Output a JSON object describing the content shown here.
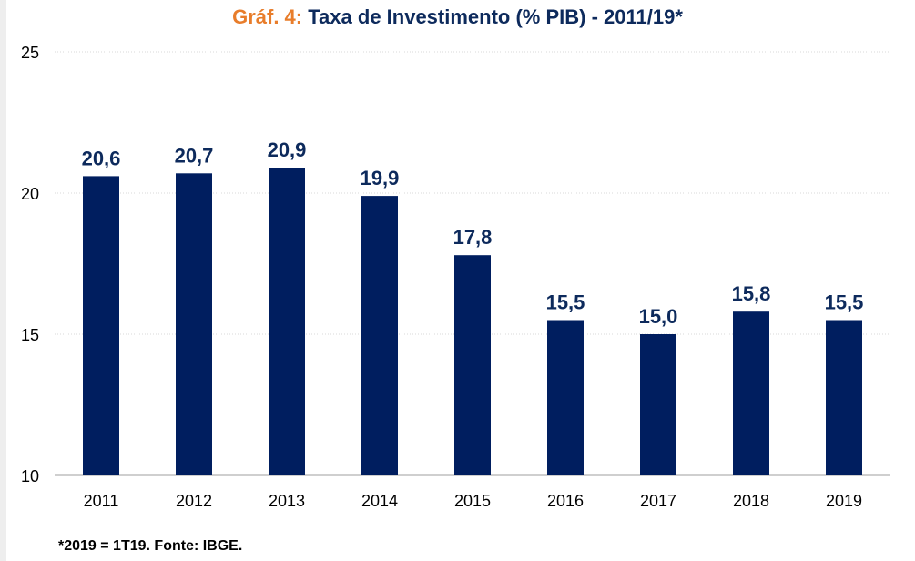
{
  "colors": {
    "title_prefix": "#e87d2b",
    "title_main": "#0d2a5c",
    "bar": "#001e5f",
    "label": "#0d2a5c"
  },
  "chart_data": {
    "type": "bar",
    "title_prefix": "Gráf. 4:",
    "title": "Taxa de Investimento (% PIB) - 2011/19*",
    "categories": [
      "2011",
      "2012",
      "2013",
      "2014",
      "2015",
      "2016",
      "2017",
      "2018",
      "2019"
    ],
    "values": [
      20.6,
      20.7,
      20.9,
      19.9,
      17.8,
      15.5,
      15.0,
      15.8,
      15.5
    ],
    "value_labels": [
      "20,6",
      "20,7",
      "20,9",
      "19,9",
      "17,8",
      "15,5",
      "15,0",
      "15,8",
      "15,5"
    ],
    "ylim": [
      10,
      25
    ],
    "yticks": [
      10,
      15,
      20,
      25
    ],
    "grid": true,
    "xlabel": "",
    "ylabel": "",
    "footnote": "*2019 = 1T19. Fonte: IBGE."
  }
}
